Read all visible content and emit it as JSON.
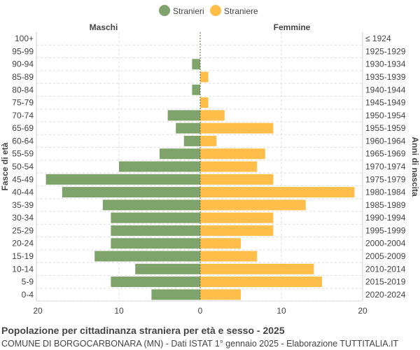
{
  "chart_data": {
    "type": "bar",
    "orientation": "horizontal-pyramid",
    "title": "Popolazione per cittadinanza straniera per età e sesso - 2025",
    "subtitle": "COMUNE DI BORGOCARBONARA (MN) - Dati ISTAT 1° gennaio 2025 - Elaborazione TUTTITALIA.IT",
    "left_header": "Maschi",
    "right_header": "Femmine",
    "ylabel_left": "Fasce di età",
    "ylabel_right": "Anni di nascita",
    "legend_position": "top",
    "xlim": [
      -20,
      20
    ],
    "xticks": [
      "20",
      "10",
      "0",
      "10",
      "20"
    ],
    "categories": [
      "100+",
      "95-99",
      "90-94",
      "85-89",
      "80-84",
      "75-79",
      "70-74",
      "65-69",
      "60-64",
      "55-59",
      "50-54",
      "45-49",
      "40-44",
      "35-39",
      "30-34",
      "25-29",
      "20-24",
      "15-19",
      "10-14",
      "5-9",
      "0-4"
    ],
    "birth_years": [
      "≤ 1924",
      "1925-1929",
      "1930-1934",
      "1935-1939",
      "1940-1944",
      "1945-1949",
      "1950-1954",
      "1955-1959",
      "1960-1964",
      "1965-1969",
      "1970-1974",
      "1975-1979",
      "1980-1984",
      "1985-1989",
      "1990-1994",
      "1995-1999",
      "2000-2004",
      "2005-2009",
      "2010-2014",
      "2015-2019",
      "2020-2024"
    ],
    "series": [
      {
        "name": "Stranieri",
        "color": "#7ea46c",
        "values": [
          0,
          0,
          1,
          0,
          1,
          0,
          4,
          3,
          2,
          5,
          10,
          19,
          17,
          12,
          11,
          11,
          11,
          13,
          8,
          11,
          6
        ]
      },
      {
        "name": "Straniere",
        "color": "#ffbe4a",
        "values": [
          0,
          0,
          0,
          1,
          0,
          1,
          3,
          9,
          2,
          8,
          7,
          9,
          19,
          13,
          9,
          9,
          5,
          7,
          14,
          15,
          5
        ]
      }
    ]
  }
}
